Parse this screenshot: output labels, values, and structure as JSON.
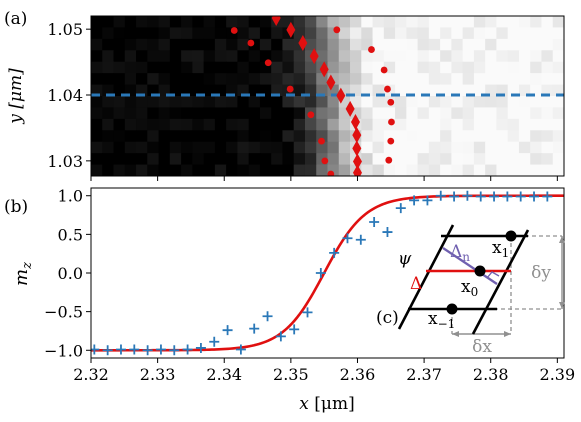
{
  "chart_data": [
    {
      "panel_label": "(a)",
      "type": "heatmap",
      "ylabel": "y [μm]",
      "y_ticks": [
        "1.03",
        "1.04",
        "1.05"
      ],
      "y_tick_values": [
        1.03,
        1.04,
        1.05
      ],
      "xlim": [
        2.32,
        2.391
      ],
      "ylim": [
        1.0277,
        1.052
      ],
      "colormap": "grayscale (black = -1, white = +1)",
      "dashed_line": {
        "y": 1.04,
        "color": "#2a78b8"
      },
      "diamond_series": {
        "color": "#e01010",
        "points": [
          [
            2.3478,
            1.0517
          ],
          [
            2.35,
            1.0499
          ],
          [
            2.3518,
            1.0479
          ],
          [
            2.3535,
            1.0459
          ],
          [
            2.355,
            1.0439
          ],
          [
            2.356,
            1.0419
          ],
          [
            2.3575,
            1.0399
          ],
          [
            2.3589,
            1.0379
          ],
          [
            2.3597,
            1.0359
          ],
          [
            2.3599,
            1.0339
          ],
          [
            2.3599,
            1.0319
          ],
          [
            2.36,
            1.0299
          ],
          [
            2.36,
            1.0282
          ]
        ]
      },
      "left_dot_series": {
        "color": "#e01010",
        "points": [
          [
            2.3415,
            1.0498
          ],
          [
            2.344,
            1.0479
          ],
          [
            2.3466,
            1.0449
          ],
          [
            2.3499,
            1.0409
          ],
          [
            2.353,
            1.037
          ],
          [
            2.3546,
            1.033
          ],
          [
            2.3551,
            1.03
          ],
          [
            2.356,
            1.028
          ]
        ]
      },
      "right_dot_series": {
        "color": "#e01010",
        "points": [
          [
            2.3569,
            1.0499
          ],
          [
            2.3621,
            1.0469
          ],
          [
            2.364,
            1.0438
          ],
          [
            2.3645,
            1.0409
          ],
          [
            2.365,
            1.0389
          ],
          [
            2.3651,
            1.0359
          ],
          [
            2.365,
            1.033
          ],
          [
            2.3647,
            1.0301
          ]
        ]
      }
    },
    {
      "panel_label": "(b)",
      "type": "scatter",
      "xlabel": "x [μm]",
      "ylabel": "m_z",
      "xlim": [
        2.32,
        2.391
      ],
      "ylim": [
        -1.1,
        1.1
      ],
      "x_ticks": [
        "2.32",
        "2.33",
        "2.34",
        "2.35",
        "2.36",
        "2.37",
        "2.38",
        "2.39"
      ],
      "x_tick_values": [
        2.32,
        2.33,
        2.34,
        2.35,
        2.36,
        2.37,
        2.38,
        2.39
      ],
      "y_ticks": [
        "−1.0",
        "−0.5",
        "0.0",
        "0.5",
        "1.0"
      ],
      "y_tick_values": [
        -1.0,
        -0.5,
        0.0,
        0.5,
        1.0
      ],
      "series": [
        {
          "marker": "+",
          "color": "#2a78b8",
          "x": [
            2.3205,
            2.3225,
            2.3245,
            2.3265,
            2.3285,
            2.3305,
            2.3325,
            2.3345,
            2.3365,
            2.3385,
            2.3405,
            2.3425,
            2.3445,
            2.3465,
            2.3485,
            2.3505,
            2.3525,
            2.3545,
            2.3565,
            2.3585,
            2.3605,
            2.3625,
            2.3645,
            2.3665,
            2.3685,
            2.3705,
            2.3725,
            2.3745,
            2.3765,
            2.3785,
            2.3805,
            2.3825,
            2.3845,
            2.3865,
            2.3885
          ],
          "y": [
            -0.99,
            -1.0,
            -0.99,
            -0.99,
            -1.0,
            -0.99,
            -1.0,
            -0.99,
            -0.97,
            -0.89,
            -0.74,
            -0.99,
            -0.72,
            -0.56,
            -0.82,
            -0.73,
            -0.51,
            0.0,
            0.26,
            0.45,
            0.43,
            0.66,
            0.53,
            0.84,
            0.94,
            0.94,
            1.0,
            0.99,
            1.0,
            0.99,
            0.99,
            0.99,
            0.99,
            0.99,
            0.99
          ]
        },
        {
          "type": "line",
          "color": "#e01010",
          "model": "tanh",
          "center": 2.355,
          "width": 0.0062
        }
      ]
    }
  ],
  "inset": {
    "label": "(c)",
    "psi": "ψ",
    "delta": "Δ",
    "delta_n": "Δ",
    "delta_n_sub": "n",
    "x1": "x",
    "x1_sub": "1",
    "x0": "x",
    "x0_sub": "0",
    "xm1": "x",
    "xm1_sub": "−1",
    "dy": "δy",
    "dx": "δx",
    "colors": {
      "delta": "#e01010",
      "delta_n": "#7060b0",
      "grey": "#909090"
    }
  }
}
